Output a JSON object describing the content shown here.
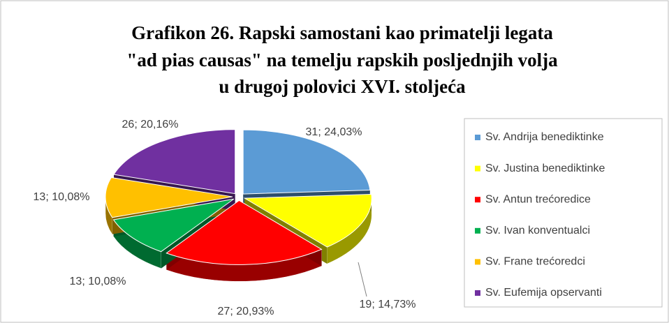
{
  "chart_data": {
    "type": "pie3d",
    "title": [
      "Grafikon 26. Rapski samostani kao primatelji legata",
      "\"ad pias causas\" na temelju rapskih posljednjih volja",
      "u drugoj polovici XVI. stoljeća"
    ],
    "categories": [
      "Sv. Andrija benediktinke",
      "Sv. Justina benediktinke",
      "Sv. Antun trećoredice",
      "Sv. Ivan konventualci",
      "Sv. Frane trećoredci",
      "Sv. Eufemija opservanti"
    ],
    "values": [
      31,
      19,
      27,
      13,
      13,
      26
    ],
    "value_labels": [
      "31; 24,03%",
      "19; 14,73%",
      "27; 20,93%",
      "13; 10,08%",
      "13; 10,08%",
      "26; 20,16%"
    ],
    "colors": [
      "#5b9bd5",
      "#ffff00",
      "#ff0000",
      "#00b050",
      "#ffc000",
      "#7030a0"
    ],
    "legend": "right"
  }
}
